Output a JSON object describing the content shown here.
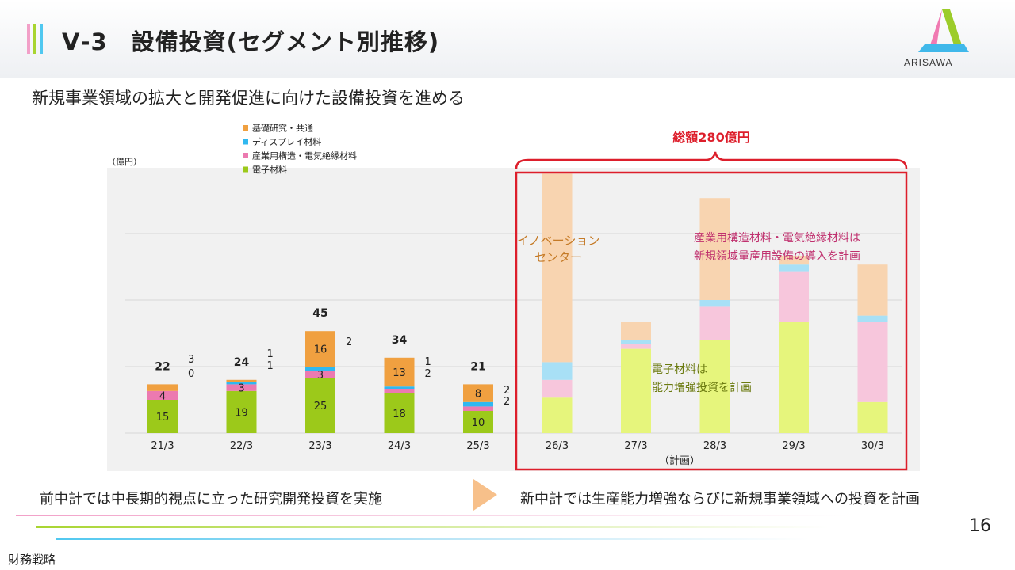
{
  "header": {
    "title": "Ⅴ-3　設備投資(セグメント別推移)",
    "logo_text": "ARISAWA"
  },
  "subtitle": "新規事業領域の拡大と開発促進に向けた設備投資を進める",
  "colors": {
    "orange": "#f0a040",
    "blue": "#30b8f0",
    "pink": "#ec7ab0",
    "green": "#9cc91a",
    "orange_light": "#f8d4b0",
    "blue_light": "#a8e0f6",
    "pink_light": "#f7c6dc",
    "green_light": "#e6f57c",
    "red": "#dd1e2b"
  },
  "chart_data": {
    "type": "bar",
    "stacked": true,
    "unit_label": "（億円）",
    "categories": [
      "21/3",
      "22/3",
      "23/3",
      "24/3",
      "25/3",
      "26/3",
      "27/3",
      "28/3",
      "29/3",
      "30/3"
    ],
    "planned_from_index": 5,
    "series": [
      {
        "name": "電子材料",
        "color_key": "green",
        "values": [
          15,
          19,
          25,
          18,
          10,
          16,
          38,
          42,
          50,
          14
        ]
      },
      {
        "name": "産業用構造・電気絶縁材料",
        "color_key": "pink",
        "values": [
          4,
          3,
          3,
          2,
          2,
          8,
          2,
          15,
          23,
          36
        ]
      },
      {
        "name": "ディスプレイ材料",
        "color_key": "blue",
        "values": [
          0,
          1,
          2,
          1,
          2,
          8,
          2,
          3,
          3,
          3
        ]
      },
      {
        "name": "基礎研究・共通",
        "color_key": "orange",
        "values": [
          3,
          1,
          16,
          13,
          8,
          85,
          8,
          46,
          4,
          23
        ]
      }
    ],
    "totals": [
      "22",
      "24",
      "45",
      "34",
      "21",
      "",
      "",
      "",
      "",
      ""
    ],
    "segment_labels": [
      {
        "inside": [
          "15",
          "4"
        ],
        "side": [
          "0",
          "3"
        ]
      },
      {
        "inside": [
          "19",
          "3"
        ],
        "side": [
          "1",
          "1"
        ]
      },
      {
        "inside": [
          "25",
          "3",
          "",
          "16"
        ],
        "side": [
          "",
          "",
          "2",
          ""
        ]
      },
      {
        "inside": [
          "18",
          "",
          "",
          "13"
        ],
        "side": [
          "",
          "2",
          "1",
          ""
        ]
      },
      {
        "inside": [
          "10",
          "",
          "",
          "8"
        ],
        "side": [
          "",
          "2",
          "2",
          ""
        ]
      }
    ],
    "ylim": [
      0,
      120
    ],
    "gridlines": [
      0,
      30,
      60,
      90
    ],
    "legend": [
      "基礎研究・共通",
      "ディスプレイ材料",
      "産業用構造・電気絶縁材料",
      "電子材料"
    ],
    "plan_label": "（計画）",
    "bracket_label": "総額280億円",
    "annotations": {
      "innovation": [
        "イノベーション",
        "センター"
      ],
      "industrial": [
        "産業用構造材料・電気絶縁材料は",
        "新規領域量産用設備の導入を計画"
      ],
      "electronic": [
        "電子材料は",
        "能力増強投資を計画"
      ]
    }
  },
  "footer": {
    "left": "前中計では中長期的視点に立った研究開発投資を実施",
    "right": "新中計では生産能力増強ならびに新規事業領域への投資を計画"
  },
  "page_number": "16",
  "section": "財務戦略"
}
